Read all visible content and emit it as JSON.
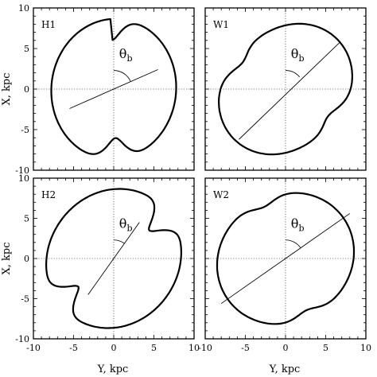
{
  "figure": {
    "xlabel": "Y, kpc",
    "ylabel": "X, kpc"
  },
  "chart_data": [
    {
      "type": "line",
      "panel": "H1",
      "xlim": [
        -10,
        10
      ],
      "ylim": [
        -10,
        10
      ],
      "xticks": [
        -10,
        -5,
        0,
        5,
        10
      ],
      "yticks": [
        -10,
        -5,
        0,
        5,
        10
      ],
      "show_xticklabels": false,
      "show_yticklabels": true,
      "angle_label": "θb",
      "bar": {
        "end": [
          5.5,
          2.4
        ],
        "start": [
          -5.5,
          -2.4
        ]
      },
      "outline": {
        "x": [
          -6.5,
          -7.5,
          -8.0,
          -7.6,
          -6.7,
          -5.0,
          -3.0,
          -1.0,
          1.0,
          3.0,
          4.6,
          5.5,
          5.3,
          5.3,
          6.3,
          7.2,
          7.8,
          7.5,
          6.6,
          5.0,
          3.0,
          1.0,
          -1.0,
          -3.0,
          -4.5,
          -5.3,
          -5.4,
          -5.5,
          -6.2,
          -7.0,
          -7.5,
          -7.7,
          -7.5,
          -6.9,
          -6.5
        ],
        "y": [
          7.5,
          6.0,
          4.0,
          2.0,
          0.2,
          -0.6,
          -1.4,
          -2.2,
          -2.8,
          -3.2,
          -3.0,
          -1.5,
          0.5,
          2.0,
          3.2,
          3.5,
          4.0,
          5.8,
          7.2,
          8.1,
          8.4,
          8.3,
          7.8,
          7.0,
          5.5,
          3.8,
          1.2,
          -2.4,
          -2.8,
          -3.5,
          -4.5,
          -5.8,
          -6.6,
          -7.2,
          7.5
        ]
      }
    },
    {
      "type": "line",
      "panel": "W1",
      "xlim": [
        -10,
        10
      ],
      "ylim": [
        -10,
        10
      ],
      "xticks": [
        -10,
        -5,
        0,
        5,
        10
      ],
      "yticks": [
        -10,
        -5,
        0,
        5,
        10
      ],
      "show_xticklabels": false,
      "show_yticklabels": false,
      "angle_label": "θb",
      "bar": {
        "end": [
          6.8,
          5.8
        ],
        "start": [
          -5.8,
          -6.2
        ]
      },
      "outline": {
        "x": [],
        "y": []
      }
    },
    {
      "type": "line",
      "panel": "H2",
      "xlim": [
        -10,
        10
      ],
      "ylim": [
        -10,
        10
      ],
      "xticks": [
        -10,
        -5,
        0,
        5,
        10
      ],
      "yticks": [
        -10,
        -5,
        0,
        5,
        10
      ],
      "show_xticklabels": true,
      "show_yticklabels": true,
      "angle_label": "θb",
      "bar": {
        "end": [
          3.2,
          4.5
        ],
        "start": [
          -3.2,
          -4.5
        ]
      },
      "outline": {
        "x": [],
        "y": []
      }
    },
    {
      "type": "line",
      "panel": "W2",
      "xlim": [
        -10,
        10
      ],
      "ylim": [
        -10,
        10
      ],
      "xticks": [
        -10,
        -5,
        0,
        5,
        10
      ],
      "yticks": [
        -10,
        -5,
        0,
        5,
        10
      ],
      "show_xticklabels": true,
      "show_yticklabels": false,
      "angle_label": "θb",
      "bar": {
        "end": [
          8.0,
          5.6
        ],
        "start": [
          -8.0,
          -5.6
        ]
      },
      "outline": {
        "x": [],
        "y": []
      }
    }
  ]
}
